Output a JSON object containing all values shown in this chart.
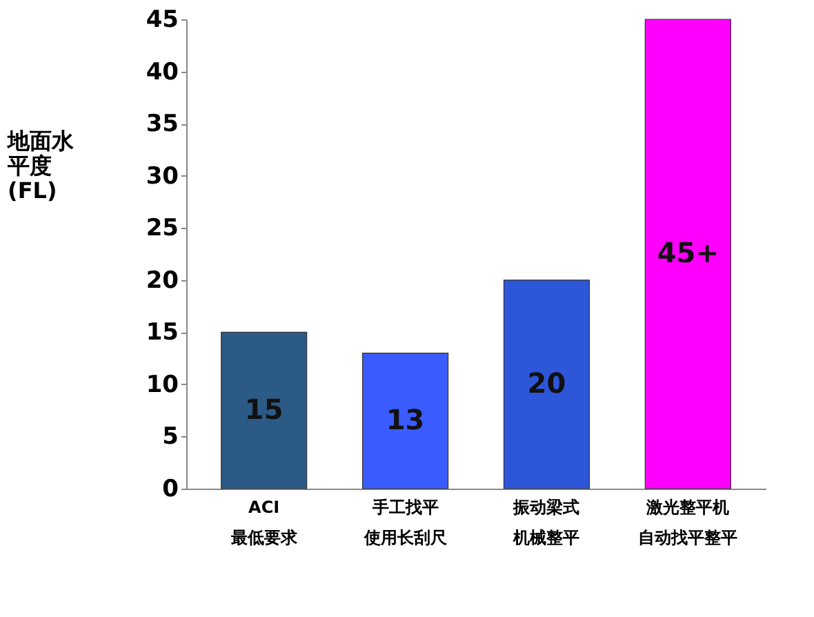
{
  "chart_data": {
    "type": "bar",
    "ylabel": "地面水平度(FL)",
    "categories": [
      "ACI最低要求",
      "手工找平使用长刮尺",
      "振动梁式机械整平",
      "激光整平机自动找平整平"
    ],
    "values": [
      15,
      13,
      20,
      45
    ],
    "colors": [
      "#2b5a86",
      "#3a5cff",
      "#2e56d8",
      "#ff00ff"
    ],
    "value_labels": [
      "15",
      "13",
      "20",
      "45+"
    ],
    "ylim": [
      0,
      45
    ],
    "yticks": [
      0,
      5,
      10,
      15,
      20,
      25,
      30,
      35,
      40,
      45
    ],
    "grid": false,
    "legend": false
  }
}
